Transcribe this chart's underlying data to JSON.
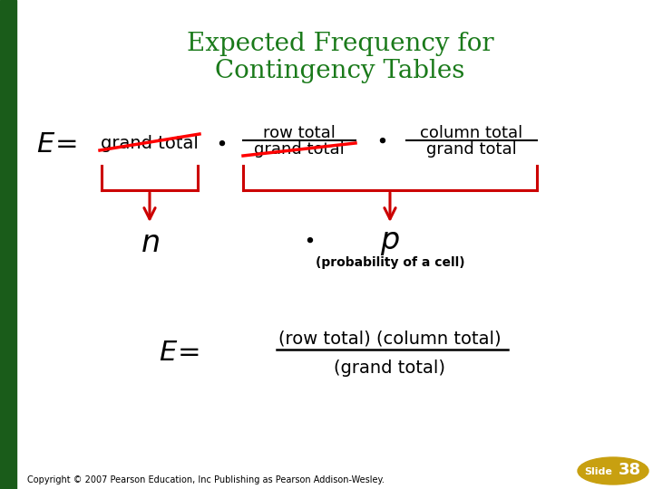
{
  "title_line1": "Expected Frequency for",
  "title_line2": "Contingency Tables",
  "title_color": "#1a7a1a",
  "bg_color": "#ffffff",
  "left_bar_color": "#1a5c1a",
  "slide_number": "38",
  "copyright_text": "Copyright © 2007 Pearson Education, Inc Publishing as Pearson Addison-Wesley."
}
